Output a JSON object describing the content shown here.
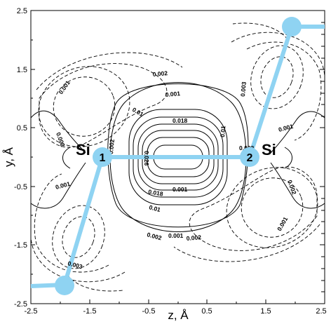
{
  "axes": {
    "x_label": "z,  Å",
    "y_label": "y,  Å",
    "xlim": [
      -2.5,
      2.5
    ],
    "ylim": [
      -2.5,
      2.5
    ],
    "x_ticks": [
      "-2.5",
      "-1.5",
      "-0.5",
      "0.5",
      "1.5",
      "2.5"
    ],
    "y_ticks": [
      "2.5",
      "1.5",
      "0.5",
      "-0.5",
      "-1.5",
      "-2.5"
    ]
  },
  "atoms": [
    {
      "element": "Si",
      "number": "1",
      "z": -1.2,
      "y": 0.0
    },
    {
      "element": "Si",
      "number": "2",
      "z": 1.2,
      "y": 0.0
    }
  ],
  "contour_labels": [
    "0.002",
    "0.001",
    "0.002",
    "0.001",
    "0.01",
    "0.018",
    "0.026",
    "0.01",
    "0.002",
    "0.003",
    "0.001",
    "0.002",
    "0.001",
    "0.018",
    "0.001",
    "0.01",
    "0.002",
    "0.001",
    "0.002",
    "0.003",
    "0.002",
    "0.001"
  ],
  "colors": {
    "bond": "#8fd3f2",
    "contour": "#000000"
  }
}
